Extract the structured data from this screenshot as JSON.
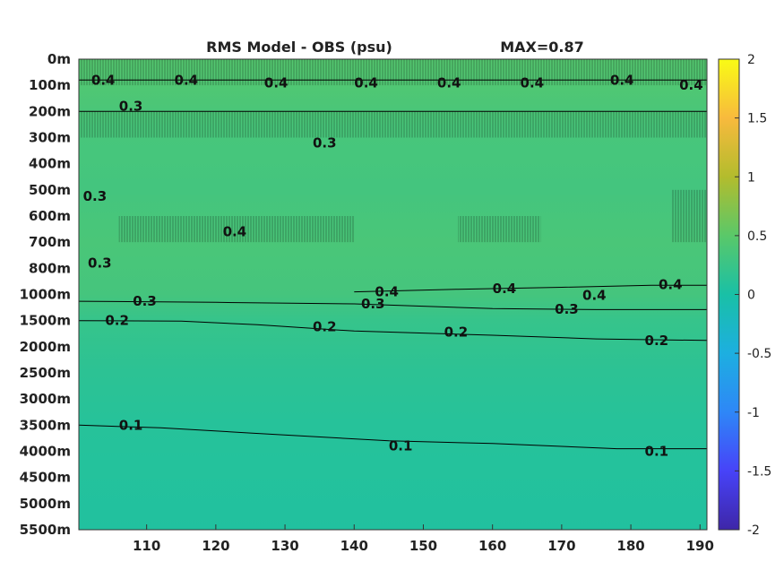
{
  "chart_data": {
    "type": "heatmap",
    "title": "RMS Model - OBS (psu)",
    "max_label": "MAX=0.87",
    "x_ticks": [
      "110",
      "120",
      "130",
      "140",
      "150",
      "160",
      "170",
      "180",
      "190"
    ],
    "x_range": [
      100.2,
      191.0
    ],
    "y_ticks": [
      "0m",
      "100m",
      "200m",
      "300m",
      "400m",
      "500m",
      "600m",
      "700m",
      "800m",
      "1000m",
      "1500m",
      "2000m",
      "2500m",
      "3000m",
      "3500m",
      "4000m",
      "4500m",
      "5000m",
      "5500m"
    ],
    "colorbar": {
      "range": [
        -2,
        2
      ],
      "ticks": [
        "-2",
        "-1.5",
        "-1",
        "-0.5",
        "0",
        "0.5",
        "1",
        "1.5",
        "2"
      ],
      "colors": [
        "#3e26a8",
        "#4743f8",
        "#2e87f7",
        "#1dafe0",
        "#19c0a6",
        "#5ac869",
        "#b3bc2d",
        "#f8ba3d",
        "#f9fb15"
      ]
    },
    "field_rows": [
      {
        "depth": "0m",
        "value": 0.45
      },
      {
        "depth": "100m",
        "value": 0.42
      },
      {
        "depth": "200m",
        "value": 0.38
      },
      {
        "depth": "300m",
        "value": 0.35
      },
      {
        "depth": "500m",
        "value": 0.33
      },
      {
        "depth": "700m",
        "value": 0.38
      },
      {
        "depth": "1000m",
        "value": 0.34
      },
      {
        "depth": "1500m",
        "value": 0.22
      },
      {
        "depth": "2500m",
        "value": 0.15
      },
      {
        "depth": "3500m",
        "value": 0.1
      },
      {
        "depth": "5500m",
        "value": 0.06
      }
    ],
    "contours": [
      {
        "level": "0.1",
        "points": [
          [
            100.2,
            "3500m"
          ],
          [
            112,
            "3550m"
          ],
          [
            125,
            "3650m"
          ],
          [
            145,
            "3800m"
          ],
          [
            160,
            "3850m"
          ],
          [
            178,
            "3950m"
          ],
          [
            191,
            "3950m"
          ]
        ],
        "labels": [
          [
            106,
            "3500m",
            "0.1"
          ],
          [
            145,
            "3900m",
            "0.1"
          ],
          [
            182,
            "4000m",
            "0.1"
          ]
        ]
      },
      {
        "level": "0.2",
        "points": [
          [
            100.2,
            "1500m"
          ],
          [
            115,
            "1510m"
          ],
          [
            126,
            "1580m"
          ],
          [
            140,
            "1700m"
          ],
          [
            160,
            "1780m"
          ],
          [
            175,
            "1850m"
          ],
          [
            191,
            "1880m"
          ]
        ],
        "labels": [
          [
            104,
            "1500m",
            "0.2"
          ],
          [
            134,
            "1620m",
            "0.2"
          ],
          [
            153,
            "1720m",
            "0.2"
          ],
          [
            182,
            "1880m",
            "0.2"
          ]
        ]
      },
      {
        "level": "0.3",
        "points": [
          [
            100.2,
            "1130m"
          ],
          [
            120,
            "1150m"
          ],
          [
            140,
            "1180m"
          ],
          [
            160,
            "1270m"
          ],
          [
            175,
            "1290m"
          ],
          [
            191,
            "1290m"
          ]
        ],
        "labels": [
          [
            108,
            "1130m",
            "0.3"
          ],
          [
            141,
            "1180m",
            "0.3"
          ],
          [
            169,
            "1280m",
            "0.3"
          ]
        ]
      },
      {
        "level": "0.4",
        "points": [
          [
            140,
            "980m"
          ],
          [
            155,
            "960m"
          ],
          [
            170,
            "945m"
          ],
          [
            183,
            "930m"
          ],
          [
            191,
            "930m"
          ]
        ],
        "labels": [
          [
            143,
            "980m",
            "0.4"
          ],
          [
            160,
            "955m",
            "0.4"
          ],
          [
            173,
            "1020m",
            "0.4"
          ],
          [
            184,
            "925m",
            "0.4"
          ]
        ]
      },
      {
        "level": "0.4",
        "points": [
          [
            100.2,
            "80m"
          ],
          [
            191,
            "80m"
          ]
        ],
        "labels": [
          [
            102,
            "80m",
            "0.4"
          ],
          [
            114,
            "80m",
            "0.4"
          ],
          [
            127,
            "90m",
            "0.4"
          ],
          [
            140,
            "90m",
            "0.4"
          ],
          [
            152,
            "90m",
            "0.4"
          ],
          [
            164,
            "90m",
            "0.4"
          ],
          [
            177,
            "80m",
            "0.4"
          ],
          [
            187,
            "100m",
            "0.4"
          ]
        ]
      },
      {
        "level": "0.3",
        "points": [
          [
            100.2,
            "200m"
          ],
          [
            191,
            "200m"
          ]
        ],
        "labels": [
          [
            106,
            "180m",
            "0.3"
          ],
          [
            100.8,
            "525m",
            "0.3"
          ],
          [
            101.5,
            "780m",
            "0.3"
          ],
          [
            121,
            "660m",
            "0.4"
          ],
          [
            134,
            "320m",
            "0.3"
          ]
        ]
      }
    ]
  }
}
